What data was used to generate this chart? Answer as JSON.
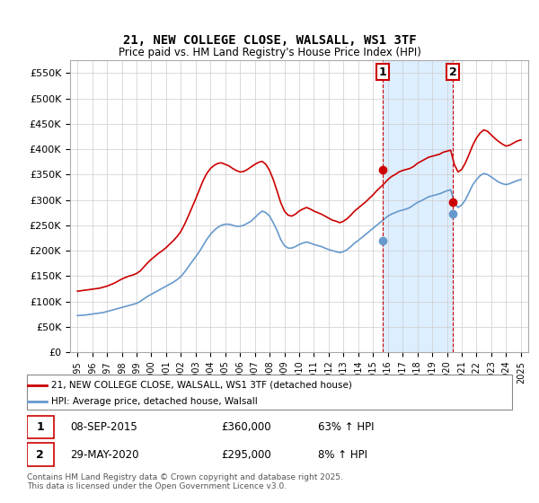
{
  "title": "21, NEW COLLEGE CLOSE, WALSALL, WS1 3TF",
  "subtitle": "Price paid vs. HM Land Registry's House Price Index (HPI)",
  "legend_label_red": "21, NEW COLLEGE CLOSE, WALSALL, WS1 3TF (detached house)",
  "legend_label_blue": "HPI: Average price, detached house, Walsall",
  "annotation1_label": "1",
  "annotation1_date": "08-SEP-2015",
  "annotation1_price": "£360,000",
  "annotation1_hpi": "63% ↑ HPI",
  "annotation2_label": "2",
  "annotation2_date": "29-MAY-2020",
  "annotation2_price": "£295,000",
  "annotation2_hpi": "8% ↑ HPI",
  "footnote": "Contains HM Land Registry data © Crown copyright and database right 2025.\nThis data is licensed under the Open Government Licence v3.0.",
  "red_color": "#cc0000",
  "blue_color": "#6699cc",
  "vline_color": "#cc0000",
  "shaded_color": "#ddeeff",
  "ylim": [
    0,
    575000
  ],
  "yticks": [
    0,
    50000,
    100000,
    150000,
    200000,
    250000,
    300000,
    350000,
    400000,
    450000,
    500000,
    550000
  ],
  "ytick_labels": [
    "£0",
    "£50K",
    "£100K",
    "£150K",
    "£200K",
    "£250K",
    "£300K",
    "£350K",
    "£400K",
    "£450K",
    "£500K",
    "£550K"
  ],
  "marker1_x": 2015.67,
  "marker1_y_red": 360000,
  "marker1_y_blue": 220000,
  "marker2_x": 2020.41,
  "marker2_y_red": 295000,
  "marker2_y_blue": 273000,
  "vline1_x": 2015.67,
  "vline2_x": 2020.41,
  "xlim": [
    1994.5,
    2025.5
  ],
  "xticks": [
    1995,
    1996,
    1997,
    1998,
    1999,
    2000,
    2001,
    2002,
    2003,
    2004,
    2005,
    2006,
    2007,
    2008,
    2009,
    2010,
    2011,
    2012,
    2013,
    2014,
    2015,
    2016,
    2017,
    2018,
    2019,
    2020,
    2021,
    2022,
    2023,
    2024,
    2025
  ],
  "hpi_data": {
    "years": [
      1995.0,
      1995.25,
      1995.5,
      1995.75,
      1996.0,
      1996.25,
      1996.5,
      1996.75,
      1997.0,
      1997.25,
      1997.5,
      1997.75,
      1998.0,
      1998.25,
      1998.5,
      1998.75,
      1999.0,
      1999.25,
      1999.5,
      1999.75,
      2000.0,
      2000.25,
      2000.5,
      2000.75,
      2001.0,
      2001.25,
      2001.5,
      2001.75,
      2002.0,
      2002.25,
      2002.5,
      2002.75,
      2003.0,
      2003.25,
      2003.5,
      2003.75,
      2004.0,
      2004.25,
      2004.5,
      2004.75,
      2005.0,
      2005.25,
      2005.5,
      2005.75,
      2006.0,
      2006.25,
      2006.5,
      2006.75,
      2007.0,
      2007.25,
      2007.5,
      2007.75,
      2008.0,
      2008.25,
      2008.5,
      2008.75,
      2009.0,
      2009.25,
      2009.5,
      2009.75,
      2010.0,
      2010.25,
      2010.5,
      2010.75,
      2011.0,
      2011.25,
      2011.5,
      2011.75,
      2012.0,
      2012.25,
      2012.5,
      2012.75,
      2013.0,
      2013.25,
      2013.5,
      2013.75,
      2014.0,
      2014.25,
      2014.5,
      2014.75,
      2015.0,
      2015.25,
      2015.5,
      2015.75,
      2016.0,
      2016.25,
      2016.5,
      2016.75,
      2017.0,
      2017.25,
      2017.5,
      2017.75,
      2018.0,
      2018.25,
      2018.5,
      2018.75,
      2019.0,
      2019.25,
      2019.5,
      2019.75,
      2020.0,
      2020.25,
      2020.5,
      2020.75,
      2021.0,
      2021.25,
      2021.5,
      2021.75,
      2022.0,
      2022.25,
      2022.5,
      2022.75,
      2023.0,
      2023.25,
      2023.5,
      2023.75,
      2024.0,
      2024.25,
      2024.5,
      2024.75,
      2025.0
    ],
    "values": [
      72000,
      72500,
      73000,
      74000,
      75000,
      76000,
      77000,
      78000,
      80000,
      82000,
      84000,
      86000,
      88000,
      90000,
      92000,
      94000,
      96000,
      100000,
      105000,
      110000,
      114000,
      118000,
      122000,
      126000,
      130000,
      134000,
      138000,
      143000,
      149000,
      158000,
      168000,
      178000,
      188000,
      198000,
      210000,
      222000,
      232000,
      240000,
      246000,
      250000,
      252000,
      252000,
      250000,
      248000,
      248000,
      250000,
      254000,
      258000,
      265000,
      272000,
      278000,
      275000,
      268000,
      255000,
      240000,
      222000,
      210000,
      205000,
      205000,
      208000,
      212000,
      215000,
      217000,
      215000,
      212000,
      210000,
      208000,
      205000,
      202000,
      200000,
      198000,
      196000,
      198000,
      202000,
      208000,
      215000,
      220000,
      226000,
      232000,
      238000,
      244000,
      250000,
      256000,
      262000,
      268000,
      272000,
      275000,
      278000,
      280000,
      282000,
      285000,
      290000,
      295000,
      298000,
      302000,
      306000,
      308000,
      310000,
      312000,
      315000,
      318000,
      320000,
      295000,
      285000,
      290000,
      300000,
      315000,
      330000,
      340000,
      348000,
      352000,
      350000,
      345000,
      340000,
      335000,
      332000,
      330000,
      332000,
      335000,
      338000,
      340000
    ]
  },
  "red_data": {
    "years": [
      1995.0,
      1995.25,
      1995.5,
      1995.75,
      1996.0,
      1996.25,
      1996.5,
      1996.75,
      1997.0,
      1997.25,
      1997.5,
      1997.75,
      1998.0,
      1998.25,
      1998.5,
      1998.75,
      1999.0,
      1999.25,
      1999.5,
      1999.75,
      2000.0,
      2000.25,
      2000.5,
      2000.75,
      2001.0,
      2001.25,
      2001.5,
      2001.75,
      2002.0,
      2002.25,
      2002.5,
      2002.75,
      2003.0,
      2003.25,
      2003.5,
      2003.75,
      2004.0,
      2004.25,
      2004.5,
      2004.75,
      2005.0,
      2005.25,
      2005.5,
      2005.75,
      2006.0,
      2006.25,
      2006.5,
      2006.75,
      2007.0,
      2007.25,
      2007.5,
      2007.75,
      2008.0,
      2008.25,
      2008.5,
      2008.75,
      2009.0,
      2009.25,
      2009.5,
      2009.75,
      2010.0,
      2010.25,
      2010.5,
      2010.75,
      2011.0,
      2011.25,
      2011.5,
      2011.75,
      2012.0,
      2012.25,
      2012.5,
      2012.75,
      2013.0,
      2013.25,
      2013.5,
      2013.75,
      2014.0,
      2014.25,
      2014.5,
      2014.75,
      2015.0,
      2015.25,
      2015.5,
      2015.75,
      2016.0,
      2016.25,
      2016.5,
      2016.75,
      2017.0,
      2017.25,
      2017.5,
      2017.75,
      2018.0,
      2018.25,
      2018.5,
      2018.75,
      2019.0,
      2019.25,
      2019.5,
      2019.75,
      2020.0,
      2020.25,
      2020.5,
      2020.75,
      2021.0,
      2021.25,
      2021.5,
      2021.75,
      2022.0,
      2022.25,
      2022.5,
      2022.75,
      2023.0,
      2023.25,
      2023.5,
      2023.75,
      2024.0,
      2024.25,
      2024.5,
      2024.75,
      2025.0
    ],
    "values": [
      120000,
      121000,
      122000,
      123000,
      124000,
      125000,
      126000,
      128000,
      130000,
      133000,
      136000,
      140000,
      144000,
      147000,
      150000,
      152000,
      155000,
      160000,
      168000,
      176000,
      183000,
      189000,
      195000,
      200000,
      206000,
      213000,
      220000,
      228000,
      238000,
      252000,
      268000,
      285000,
      302000,
      320000,
      338000,
      352000,
      362000,
      368000,
      372000,
      373000,
      370000,
      367000,
      362000,
      358000,
      355000,
      356000,
      360000,
      365000,
      370000,
      374000,
      376000,
      370000,
      358000,
      340000,
      318000,
      295000,
      278000,
      270000,
      268000,
      272000,
      278000,
      282000,
      285000,
      282000,
      278000,
      275000,
      272000,
      268000,
      264000,
      260000,
      258000,
      255000,
      258000,
      263000,
      270000,
      278000,
      284000,
      290000,
      296000,
      303000,
      310000,
      318000,
      325000,
      332000,
      340000,
      346000,
      350000,
      355000,
      358000,
      360000,
      362000,
      366000,
      372000,
      376000,
      380000,
      384000,
      386000,
      388000,
      390000,
      394000,
      396000,
      398000,
      370000,
      355000,
      360000,
      373000,
      390000,
      408000,
      422000,
      432000,
      438000,
      435000,
      428000,
      421000,
      415000,
      410000,
      406000,
      408000,
      412000,
      416000,
      418000
    ]
  }
}
